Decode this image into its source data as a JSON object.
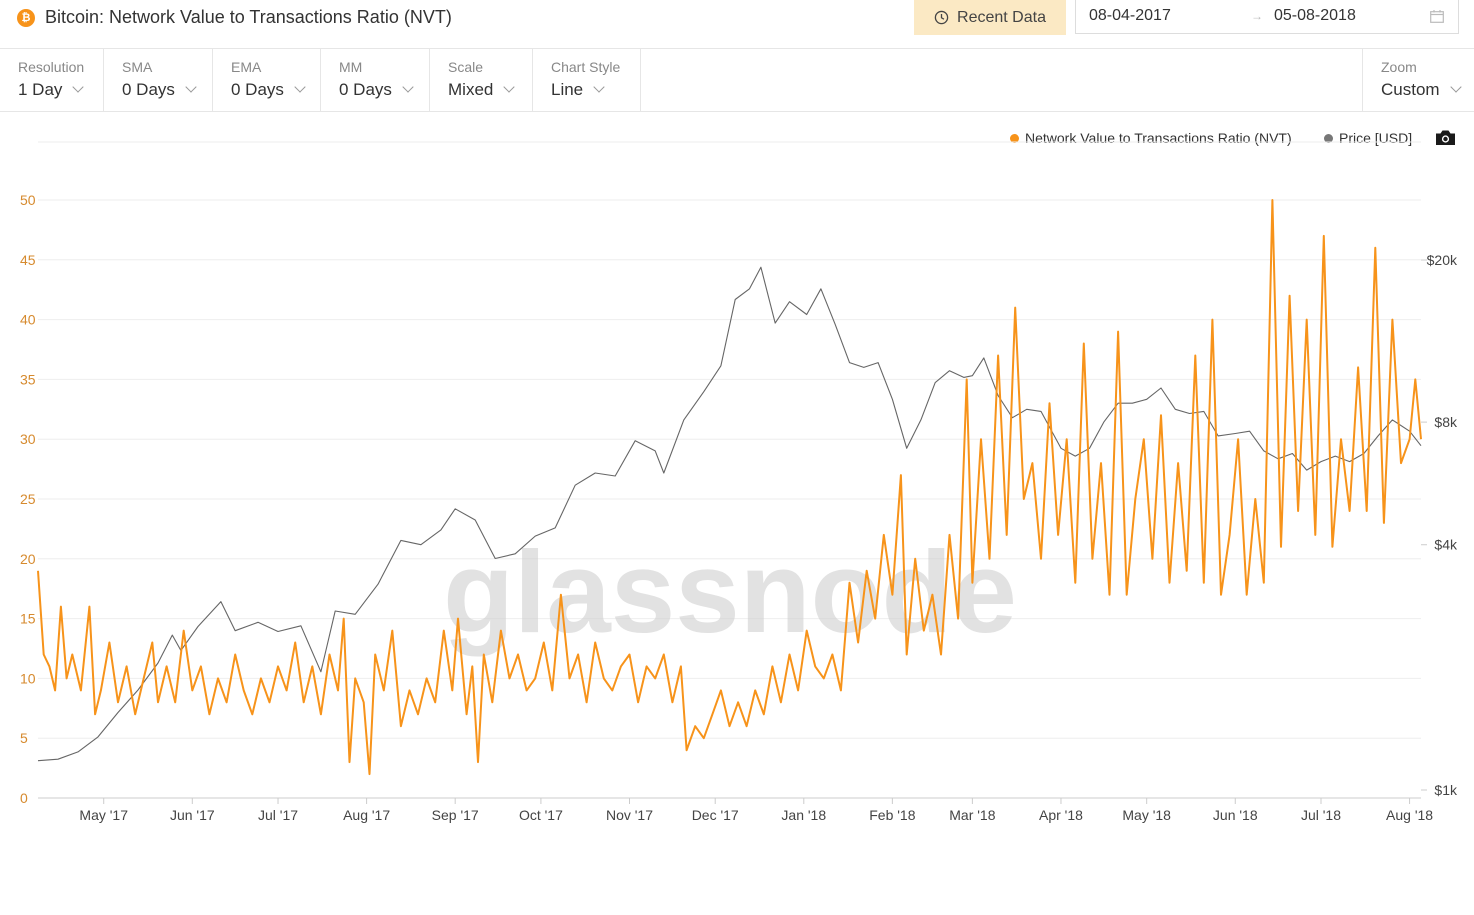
{
  "header": {
    "coin_icon": "bitcoin-icon",
    "coin_symbol": "₿",
    "title": "Bitcoin: Network Value to Transactions Ratio (NVT)",
    "recent_button": "Recent Data",
    "date_from": "08-04-2017",
    "date_to": "05-08-2018"
  },
  "controls": [
    {
      "label": "Resolution",
      "value": "1 Day"
    },
    {
      "label": "SMA",
      "value": "0 Days"
    },
    {
      "label": "EMA",
      "value": "0 Days"
    },
    {
      "label": "MM",
      "value": "0 Days"
    },
    {
      "label": "Scale",
      "value": "Mixed"
    },
    {
      "label": "Chart Style",
      "value": "Line"
    }
  ],
  "zoom": {
    "label": "Zoom",
    "value": "Custom"
  },
  "legend": {
    "nvt": "Network Value to Transactions Ratio (NVT)",
    "price": "Price [USD]"
  },
  "watermark": "glassnode",
  "colors": {
    "nvt": "#f7931a",
    "price": "#666666",
    "accent": "#fbe9c4",
    "axis_left": "#d68a2e"
  },
  "chart_data": {
    "type": "line",
    "x_range": [
      "2017-04-08",
      "2018-08-05"
    ],
    "x_ticks": [
      "May '17",
      "Jun '17",
      "Jul '17",
      "Aug '17",
      "Sep '17",
      "Oct '17",
      "Nov '17",
      "Dec '17",
      "Jan '18",
      "Feb '18",
      "Mar '18",
      "Apr '18",
      "May '18",
      "Jun '18",
      "Jul '18",
      "Aug '18"
    ],
    "y_left": {
      "ticks": [
        0,
        5,
        10,
        15,
        20,
        25,
        30,
        35,
        40,
        45,
        50
      ],
      "range": [
        0,
        50
      ]
    },
    "y_right": {
      "scale": "log",
      "ticks": [
        "$1k",
        "$4k",
        "$8k",
        "$20k"
      ],
      "tick_values": [
        1000,
        4000,
        8000,
        20000
      ]
    },
    "grid": true,
    "legend_position": "top-right",
    "series": [
      {
        "name": "Network Value to Transactions Ratio (NVT)",
        "axis": "left",
        "color": "#f7931a",
        "points": [
          [
            "2017-04-08",
            19
          ],
          [
            "2017-04-10",
            12
          ],
          [
            "2017-04-12",
            11
          ],
          [
            "2017-04-14",
            9
          ],
          [
            "2017-04-16",
            16
          ],
          [
            "2017-04-18",
            10
          ],
          [
            "2017-04-20",
            12
          ],
          [
            "2017-04-23",
            9
          ],
          [
            "2017-04-26",
            16
          ],
          [
            "2017-04-28",
            7
          ],
          [
            "2017-04-30",
            9
          ],
          [
            "2017-05-03",
            13
          ],
          [
            "2017-05-06",
            8
          ],
          [
            "2017-05-09",
            11
          ],
          [
            "2017-05-12",
            7
          ],
          [
            "2017-05-15",
            10
          ],
          [
            "2017-05-18",
            13
          ],
          [
            "2017-05-20",
            8
          ],
          [
            "2017-05-23",
            11
          ],
          [
            "2017-05-26",
            8
          ],
          [
            "2017-05-29",
            14
          ],
          [
            "2017-06-01",
            9
          ],
          [
            "2017-06-04",
            11
          ],
          [
            "2017-06-07",
            7
          ],
          [
            "2017-06-10",
            10
          ],
          [
            "2017-06-13",
            8
          ],
          [
            "2017-06-16",
            12
          ],
          [
            "2017-06-19",
            9
          ],
          [
            "2017-06-22",
            7
          ],
          [
            "2017-06-25",
            10
          ],
          [
            "2017-06-28",
            8
          ],
          [
            "2017-07-01",
            11
          ],
          [
            "2017-07-04",
            9
          ],
          [
            "2017-07-07",
            13
          ],
          [
            "2017-07-10",
            8
          ],
          [
            "2017-07-13",
            11
          ],
          [
            "2017-07-16",
            7
          ],
          [
            "2017-07-19",
            12
          ],
          [
            "2017-07-22",
            9
          ],
          [
            "2017-07-24",
            15
          ],
          [
            "2017-07-26",
            3
          ],
          [
            "2017-07-28",
            10
          ],
          [
            "2017-07-31",
            8
          ],
          [
            "2017-08-02",
            2
          ],
          [
            "2017-08-04",
            12
          ],
          [
            "2017-08-07",
            9
          ],
          [
            "2017-08-10",
            14
          ],
          [
            "2017-08-13",
            6
          ],
          [
            "2017-08-16",
            9
          ],
          [
            "2017-08-19",
            7
          ],
          [
            "2017-08-22",
            10
          ],
          [
            "2017-08-25",
            8
          ],
          [
            "2017-08-28",
            14
          ],
          [
            "2017-08-31",
            9
          ],
          [
            "2017-09-02",
            15
          ],
          [
            "2017-09-05",
            7
          ],
          [
            "2017-09-07",
            11
          ],
          [
            "2017-09-09",
            3
          ],
          [
            "2017-09-11",
            12
          ],
          [
            "2017-09-14",
            8
          ],
          [
            "2017-09-17",
            14
          ],
          [
            "2017-09-20",
            10
          ],
          [
            "2017-09-23",
            12
          ],
          [
            "2017-09-26",
            9
          ],
          [
            "2017-09-29",
            10
          ],
          [
            "2017-10-02",
            13
          ],
          [
            "2017-10-05",
            9
          ],
          [
            "2017-10-08",
            17
          ],
          [
            "2017-10-11",
            10
          ],
          [
            "2017-10-14",
            12
          ],
          [
            "2017-10-17",
            8
          ],
          [
            "2017-10-20",
            13
          ],
          [
            "2017-10-23",
            10
          ],
          [
            "2017-10-26",
            9
          ],
          [
            "2017-10-29",
            11
          ],
          [
            "2017-11-01",
            12
          ],
          [
            "2017-11-04",
            8
          ],
          [
            "2017-11-07",
            11
          ],
          [
            "2017-11-10",
            10
          ],
          [
            "2017-11-13",
            12
          ],
          [
            "2017-11-16",
            8
          ],
          [
            "2017-11-19",
            11
          ],
          [
            "2017-11-21",
            4
          ],
          [
            "2017-11-24",
            6
          ],
          [
            "2017-11-27",
            5
          ],
          [
            "2017-11-30",
            7
          ],
          [
            "2017-12-03",
            9
          ],
          [
            "2017-12-06",
            6
          ],
          [
            "2017-12-09",
            8
          ],
          [
            "2017-12-12",
            6
          ],
          [
            "2017-12-15",
            9
          ],
          [
            "2017-12-18",
            7
          ],
          [
            "2017-12-21",
            11
          ],
          [
            "2017-12-24",
            8
          ],
          [
            "2017-12-27",
            12
          ],
          [
            "2017-12-30",
            9
          ],
          [
            "2018-01-02",
            14
          ],
          [
            "2018-01-05",
            11
          ],
          [
            "2018-01-08",
            10
          ],
          [
            "2018-01-11",
            12
          ],
          [
            "2018-01-14",
            9
          ],
          [
            "2018-01-17",
            18
          ],
          [
            "2018-01-20",
            13
          ],
          [
            "2018-01-23",
            19
          ],
          [
            "2018-01-26",
            15
          ],
          [
            "2018-01-29",
            22
          ],
          [
            "2018-02-01",
            17
          ],
          [
            "2018-02-04",
            27
          ],
          [
            "2018-02-06",
            12
          ],
          [
            "2018-02-09",
            20
          ],
          [
            "2018-02-12",
            14
          ],
          [
            "2018-02-15",
            17
          ],
          [
            "2018-02-18",
            12
          ],
          [
            "2018-02-21",
            22
          ],
          [
            "2018-02-24",
            15
          ],
          [
            "2018-02-27",
            35
          ],
          [
            "2018-03-01",
            18
          ],
          [
            "2018-03-04",
            30
          ],
          [
            "2018-03-07",
            20
          ],
          [
            "2018-03-10",
            37
          ],
          [
            "2018-03-13",
            22
          ],
          [
            "2018-03-16",
            41
          ],
          [
            "2018-03-19",
            25
          ],
          [
            "2018-03-22",
            28
          ],
          [
            "2018-03-25",
            20
          ],
          [
            "2018-03-28",
            33
          ],
          [
            "2018-03-31",
            22
          ],
          [
            "2018-04-03",
            30
          ],
          [
            "2018-04-06",
            18
          ],
          [
            "2018-04-09",
            38
          ],
          [
            "2018-04-12",
            20
          ],
          [
            "2018-04-15",
            28
          ],
          [
            "2018-04-18",
            17
          ],
          [
            "2018-04-21",
            39
          ],
          [
            "2018-04-24",
            17
          ],
          [
            "2018-04-27",
            25
          ],
          [
            "2018-04-30",
            30
          ],
          [
            "2018-05-03",
            20
          ],
          [
            "2018-05-06",
            32
          ],
          [
            "2018-05-09",
            18
          ],
          [
            "2018-05-12",
            28
          ],
          [
            "2018-05-15",
            19
          ],
          [
            "2018-05-18",
            37
          ],
          [
            "2018-05-21",
            18
          ],
          [
            "2018-05-24",
            40
          ],
          [
            "2018-05-27",
            17
          ],
          [
            "2018-05-30",
            22
          ],
          [
            "2018-06-02",
            30
          ],
          [
            "2018-06-05",
            17
          ],
          [
            "2018-06-08",
            25
          ],
          [
            "2018-06-11",
            18
          ],
          [
            "2018-06-14",
            50
          ],
          [
            "2018-06-17",
            21
          ],
          [
            "2018-06-20",
            42
          ],
          [
            "2018-06-23",
            24
          ],
          [
            "2018-06-26",
            40
          ],
          [
            "2018-06-29",
            22
          ],
          [
            "2018-07-02",
            47
          ],
          [
            "2018-07-05",
            21
          ],
          [
            "2018-07-08",
            30
          ],
          [
            "2018-07-11",
            24
          ],
          [
            "2018-07-14",
            36
          ],
          [
            "2018-07-17",
            24
          ],
          [
            "2018-07-20",
            46
          ],
          [
            "2018-07-23",
            23
          ],
          [
            "2018-07-26",
            40
          ],
          [
            "2018-07-29",
            28
          ],
          [
            "2018-08-01",
            30
          ],
          [
            "2018-08-03",
            35
          ],
          [
            "2018-08-05",
            30
          ]
        ]
      },
      {
        "name": "Price [USD]",
        "axis": "right",
        "color": "#666666",
        "points": [
          [
            "2017-04-08",
            1180
          ],
          [
            "2017-04-15",
            1190
          ],
          [
            "2017-04-22",
            1240
          ],
          [
            "2017-04-29",
            1350
          ],
          [
            "2017-05-06",
            1550
          ],
          [
            "2017-05-13",
            1760
          ],
          [
            "2017-05-20",
            2050
          ],
          [
            "2017-05-25",
            2400
          ],
          [
            "2017-05-28",
            2200
          ],
          [
            "2017-06-03",
            2520
          ],
          [
            "2017-06-11",
            2900
          ],
          [
            "2017-06-16",
            2460
          ],
          [
            "2017-06-24",
            2580
          ],
          [
            "2017-07-01",
            2450
          ],
          [
            "2017-07-09",
            2530
          ],
          [
            "2017-07-16",
            1950
          ],
          [
            "2017-07-21",
            2750
          ],
          [
            "2017-07-28",
            2700
          ],
          [
            "2017-08-05",
            3200
          ],
          [
            "2017-08-13",
            4100
          ],
          [
            "2017-08-20",
            4000
          ],
          [
            "2017-08-27",
            4350
          ],
          [
            "2017-09-01",
            4900
          ],
          [
            "2017-09-08",
            4600
          ],
          [
            "2017-09-15",
            3700
          ],
          [
            "2017-09-22",
            3800
          ],
          [
            "2017-09-29",
            4200
          ],
          [
            "2017-10-06",
            4400
          ],
          [
            "2017-10-13",
            5600
          ],
          [
            "2017-10-20",
            6000
          ],
          [
            "2017-10-27",
            5900
          ],
          [
            "2017-11-03",
            7200
          ],
          [
            "2017-11-10",
            6800
          ],
          [
            "2017-11-13",
            6000
          ],
          [
            "2017-11-20",
            8100
          ],
          [
            "2017-11-27",
            9500
          ],
          [
            "2017-12-03",
            11000
          ],
          [
            "2017-12-08",
            16000
          ],
          [
            "2017-12-13",
            17000
          ],
          [
            "2017-12-17",
            19200
          ],
          [
            "2017-12-22",
            14000
          ],
          [
            "2017-12-27",
            15800
          ],
          [
            "2018-01-02",
            14700
          ],
          [
            "2018-01-07",
            17000
          ],
          [
            "2018-01-12",
            13900
          ],
          [
            "2018-01-17",
            11200
          ],
          [
            "2018-01-22",
            10900
          ],
          [
            "2018-01-27",
            11200
          ],
          [
            "2018-02-01",
            9100
          ],
          [
            "2018-02-06",
            6900
          ],
          [
            "2018-02-11",
            8100
          ],
          [
            "2018-02-16",
            10000
          ],
          [
            "2018-02-21",
            10700
          ],
          [
            "2018-02-26",
            10300
          ],
          [
            "2018-03-01",
            10400
          ],
          [
            "2018-03-05",
            11500
          ],
          [
            "2018-03-10",
            9300
          ],
          [
            "2018-03-15",
            8200
          ],
          [
            "2018-03-20",
            8600
          ],
          [
            "2018-03-25",
            8500
          ],
          [
            "2018-04-01",
            6900
          ],
          [
            "2018-04-06",
            6600
          ],
          [
            "2018-04-11",
            6900
          ],
          [
            "2018-04-16",
            8000
          ],
          [
            "2018-04-21",
            8900
          ],
          [
            "2018-04-26",
            8900
          ],
          [
            "2018-05-01",
            9100
          ],
          [
            "2018-05-06",
            9700
          ],
          [
            "2018-05-11",
            8600
          ],
          [
            "2018-05-16",
            8400
          ],
          [
            "2018-05-21",
            8500
          ],
          [
            "2018-05-26",
            7400
          ],
          [
            "2018-06-01",
            7500
          ],
          [
            "2018-06-06",
            7600
          ],
          [
            "2018-06-11",
            6800
          ],
          [
            "2018-06-16",
            6500
          ],
          [
            "2018-06-21",
            6700
          ],
          [
            "2018-06-26",
            6100
          ],
          [
            "2018-07-01",
            6400
          ],
          [
            "2018-07-06",
            6600
          ],
          [
            "2018-07-11",
            6400
          ],
          [
            "2018-07-16",
            6700
          ],
          [
            "2018-07-21",
            7400
          ],
          [
            "2018-07-26",
            8100
          ],
          [
            "2018-08-01",
            7600
          ],
          [
            "2018-08-05",
            7000
          ]
        ]
      }
    ]
  }
}
